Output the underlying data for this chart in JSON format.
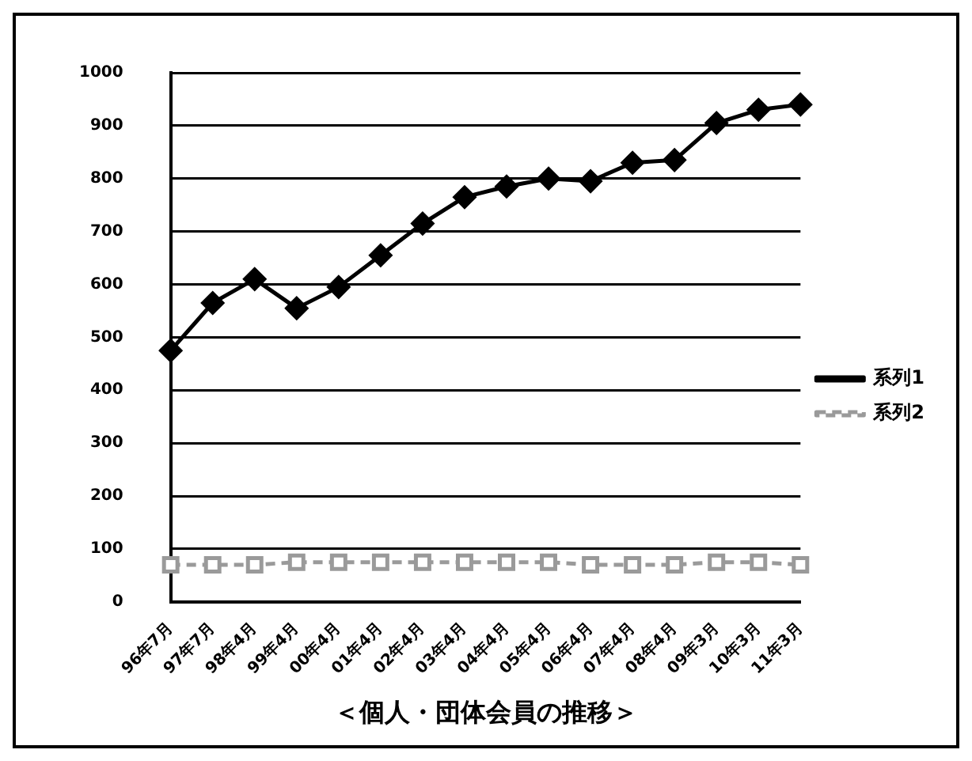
{
  "chart_data": {
    "type": "line",
    "title": "＜個人・団体会員の推移＞",
    "categories": [
      "96年7月",
      "97年7月",
      "98年4月",
      "99年4月",
      "00年4月",
      "01年4月",
      "02年4月",
      "03年4月",
      "04年4月",
      "05年4月",
      "06年4月",
      "07年4月",
      "08年4月",
      "09年3月",
      "10年3月",
      "11年3月"
    ],
    "series": [
      {
        "name": "系列1",
        "color": "#000000",
        "marker": "diamond",
        "line_style": "solid",
        "values": [
          475,
          565,
          610,
          555,
          595,
          655,
          715,
          765,
          785,
          800,
          795,
          830,
          835,
          905,
          930,
          940
        ]
      },
      {
        "name": "系列2",
        "color": "#9a9a9a",
        "marker": "square",
        "line_style": "dashed",
        "values": [
          70,
          70,
          70,
          75,
          75,
          75,
          75,
          75,
          75,
          75,
          70,
          70,
          70,
          75,
          75,
          70
        ]
      }
    ],
    "ylim": [
      0,
      1000
    ],
    "yticks": [
      0,
      100,
      200,
      300,
      400,
      500,
      600,
      700,
      800,
      900,
      1000
    ],
    "grid": "y",
    "legend": "right"
  }
}
